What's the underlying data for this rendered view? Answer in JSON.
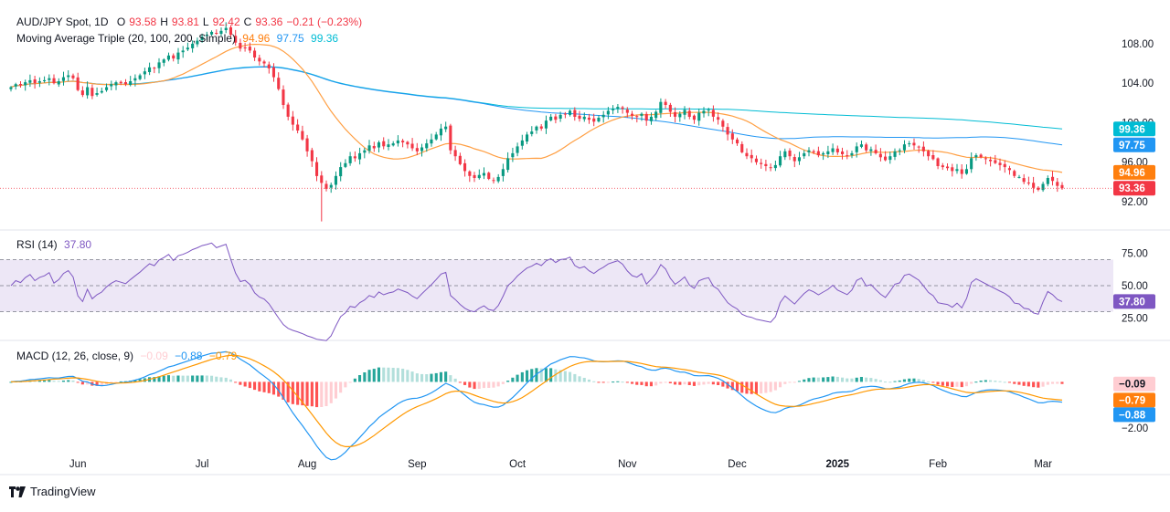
{
  "header": {
    "symbol": "AUD/JPY Spot, 1D",
    "o_label": "O",
    "o": "93.58",
    "h_label": "H",
    "h": "93.81",
    "l_label": "L",
    "l": "92.42",
    "c_label": "C",
    "c": "93.36",
    "change": "−0.21 (−0.23%)"
  },
  "ma_legend": {
    "label": "Moving Average Triple (20, 100, 200, Simple)",
    "ma20": "94.96",
    "ma100": "97.75",
    "ma200": "99.36"
  },
  "rsi_legend": {
    "label": "RSI (14)",
    "value": "37.80"
  },
  "macd_legend": {
    "label": "MACD (12, 26, close, 9)",
    "hist": "−0.09",
    "macd": "−0.88",
    "signal": "−0.79"
  },
  "price_tags": [
    {
      "text": "99.36",
      "value": 99.36,
      "color": "#00bcd4"
    },
    {
      "text": "97.75",
      "value": 97.75,
      "color": "#2196f3"
    },
    {
      "text": "94.96",
      "value": 94.96,
      "color": "#ff7f0e"
    },
    {
      "text": "93.36",
      "value": 93.36,
      "color": "#f23645"
    }
  ],
  "rsi_tag": {
    "text": "37.80",
    "value": 37.8,
    "color": "#7e57c2"
  },
  "macd_tags": [
    {
      "text": "−0.09",
      "value": -0.09,
      "color": "#ffcdd2",
      "fg": "#131722"
    },
    {
      "text": "−0.79",
      "value": -0.79,
      "color": "#ff7f0e",
      "fg": "#ffffff"
    },
    {
      "text": "−0.88",
      "value": -0.88,
      "color": "#2196f3",
      "fg": "#ffffff"
    }
  ],
  "colors": {
    "up": "#089981",
    "down": "#f23645",
    "ma20": "#ff9f43",
    "ma100": "#2196f3",
    "ma200": "#00bcd4",
    "rsi": "#7e57c2",
    "rsi_band": "#ede7f6",
    "macd": "#2196f3",
    "signal": "#ff9800",
    "hist_up_strong": "#26a69a",
    "hist_up_weak": "#b2dfdb",
    "hist_dn_strong": "#ff5252",
    "hist_dn_weak": "#ffcdd2"
  },
  "branding": {
    "name": "TradingView"
  },
  "chart_data": [
    {
      "type": "candlestick",
      "title": "AUD/JPY Spot, 1D",
      "x_ticks": [
        "Jun",
        "Jul",
        "Aug",
        "Sep",
        "Oct",
        "Nov",
        "Dec",
        "2025",
        "Feb",
        "Mar"
      ],
      "y_ticks": [
        92.0,
        96.0,
        100.0,
        104.0,
        108.0
      ],
      "ylim": [
        89.5,
        111.5
      ],
      "grid": false,
      "closes": [
        103.6,
        103.9,
        103.8,
        104.1,
        104.3,
        104.0,
        104.2,
        104.3,
        104.5,
        104.0,
        104.2,
        104.6,
        104.8,
        104.5,
        103.3,
        102.8,
        103.6,
        102.7,
        103.0,
        103.2,
        103.6,
        103.9,
        104.1,
        104.0,
        103.9,
        104.2,
        104.5,
        104.8,
        105.2,
        105.6,
        105.5,
        106.1,
        106.4,
        106.8,
        106.5,
        107.1,
        107.3,
        107.6,
        108.0,
        108.3,
        108.7,
        108.9,
        109.2,
        109.0,
        109.3,
        109.6,
        108.9,
        108.1,
        107.5,
        107.6,
        107.3,
        106.6,
        106.2,
        106.0,
        105.5,
        104.6,
        103.4,
        101.8,
        100.6,
        99.8,
        99.2,
        98.3,
        97.1,
        96.1,
        94.6,
        93.9,
        93.3,
        93.7,
        94.6,
        95.5,
        95.9,
        96.6,
        96.4,
        96.9,
        97.2,
        97.7,
        97.4,
        98.0,
        97.6,
        97.8,
        97.9,
        98.2,
        98.0,
        97.8,
        97.4,
        97.1,
        97.5,
        97.9,
        98.3,
        98.8,
        99.4,
        99.6,
        97.2,
        96.6,
        95.8,
        95.1,
        94.6,
        94.4,
        94.7,
        94.9,
        94.3,
        94.1,
        94.5,
        95.3,
        96.4,
        96.9,
        97.6,
        98.2,
        98.8,
        99.1,
        99.6,
        99.4,
        100.2,
        100.6,
        100.3,
        100.8,
        100.9,
        101.2,
        100.6,
        100.4,
        100.6,
        100.3,
        100.1,
        100.5,
        100.8,
        101.2,
        101.4,
        101.6,
        101.4,
        101.0,
        100.7,
        100.6,
        100.9,
        100.2,
        100.6,
        101.1,
        102.1,
        101.8,
        101.1,
        100.6,
        100.9,
        101.3,
        100.6,
        100.3,
        101.0,
        101.2,
        101.3,
        100.6,
        100.3,
        99.6,
        98.8,
        98.3,
        97.9,
        97.0,
        96.6,
        96.4,
        96.0,
        95.8,
        95.6,
        95.4,
        95.7,
        96.6,
        97.1,
        96.6,
        96.1,
        96.5,
        96.9,
        97.2,
        97.0,
        96.7,
        96.9,
        97.1,
        97.4,
        97.0,
        96.8,
        96.6,
        96.9,
        97.6,
        97.8,
        97.2,
        97.3,
        96.9,
        96.5,
        96.2,
        96.6,
        97.1,
        97.2,
        97.8,
        97.9,
        97.7,
        97.5,
        97.1,
        96.6,
        96.3,
        95.6,
        95.5,
        95.4,
        95.1,
        95.3,
        94.8,
        95.3,
        96.4,
        96.7,
        96.5,
        96.3,
        96.1,
        95.9,
        95.7,
        95.5,
        95.2,
        94.6,
        94.5,
        94.0,
        93.9,
        93.4,
        93.2,
        93.8,
        94.4,
        94.1,
        93.6,
        93.36
      ],
      "ma20_end": 94.96,
      "ma100_end": 97.75,
      "ma200_end": 99.36,
      "low_min": 90.0,
      "last_close": 93.36
    },
    {
      "type": "line",
      "title": "RSI (14)",
      "y_ticks": [
        25.0,
        50.0,
        75.0
      ],
      "ylim": [
        10,
        90
      ],
      "band": [
        30,
        70
      ],
      "last": 37.8
    },
    {
      "type": "bar",
      "title": "MACD (12, 26, close, 9)",
      "y_ticks": [
        -2.0
      ],
      "ylim": [
        -3.9,
        1.6
      ],
      "last_hist": -0.09,
      "last_macd": -0.88,
      "last_signal": -0.79
    }
  ]
}
